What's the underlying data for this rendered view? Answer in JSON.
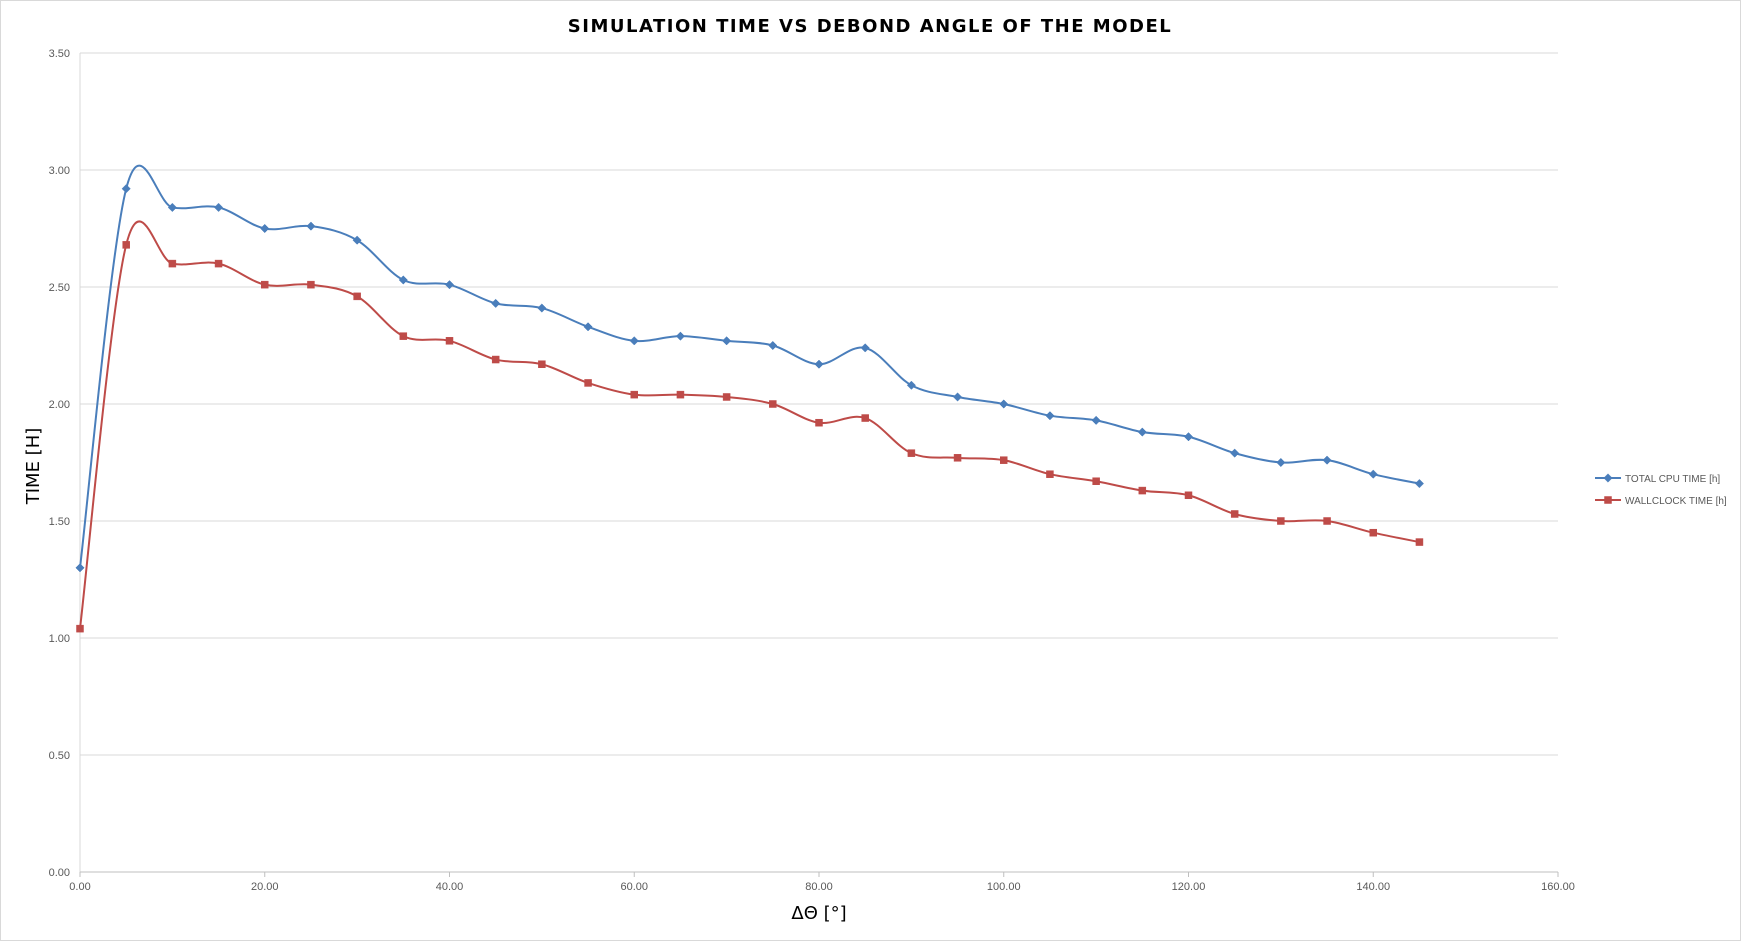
{
  "chart_data": {
    "type": "line",
    "title": "SIMULATION TIME VS DEBOND ANGLE OF THE MODEL",
    "xlabel": "ΔΘ [°]",
    "ylabel": "TIME [H]",
    "xlim": [
      0,
      160
    ],
    "ylim": [
      0,
      3.5
    ],
    "x_ticks": [
      "0.00",
      "20.00",
      "40.00",
      "60.00",
      "80.00",
      "100.00",
      "120.00",
      "140.00",
      "160.00"
    ],
    "y_ticks": [
      "0.00",
      "0.50",
      "1.00",
      "1.50",
      "2.00",
      "2.50",
      "3.00",
      "3.50"
    ],
    "grid": "horizontal",
    "smoothed": true,
    "legend_position": "right",
    "x": [
      0,
      5,
      10,
      15,
      20,
      25,
      30,
      35,
      40,
      45,
      50,
      55,
      60,
      65,
      70,
      75,
      80,
      85,
      90,
      95,
      100,
      105,
      110,
      115,
      120,
      125,
      130,
      135,
      140,
      145
    ],
    "series": [
      {
        "name": "TOTAL CPU TIME [h]",
        "color": "#4a7ebb",
        "marker": "diamond",
        "values": [
          1.3,
          2.92,
          2.84,
          2.84,
          2.75,
          2.76,
          2.7,
          2.53,
          2.51,
          2.43,
          2.41,
          2.33,
          2.27,
          2.29,
          2.27,
          2.25,
          2.17,
          2.24,
          2.08,
          2.03,
          2.0,
          1.95,
          1.93,
          1.88,
          1.86,
          1.79,
          1.75,
          1.76,
          1.7,
          1.66
        ]
      },
      {
        "name": "WALLCLOCK TIME [h]",
        "color": "#be4b48",
        "marker": "square",
        "values": [
          1.04,
          2.68,
          2.6,
          2.6,
          2.51,
          2.51,
          2.46,
          2.29,
          2.27,
          2.19,
          2.17,
          2.09,
          2.04,
          2.04,
          2.03,
          2.0,
          1.92,
          1.94,
          1.79,
          1.77,
          1.76,
          1.7,
          1.67,
          1.63,
          1.61,
          1.53,
          1.5,
          1.5,
          1.45,
          1.41
        ]
      }
    ]
  }
}
